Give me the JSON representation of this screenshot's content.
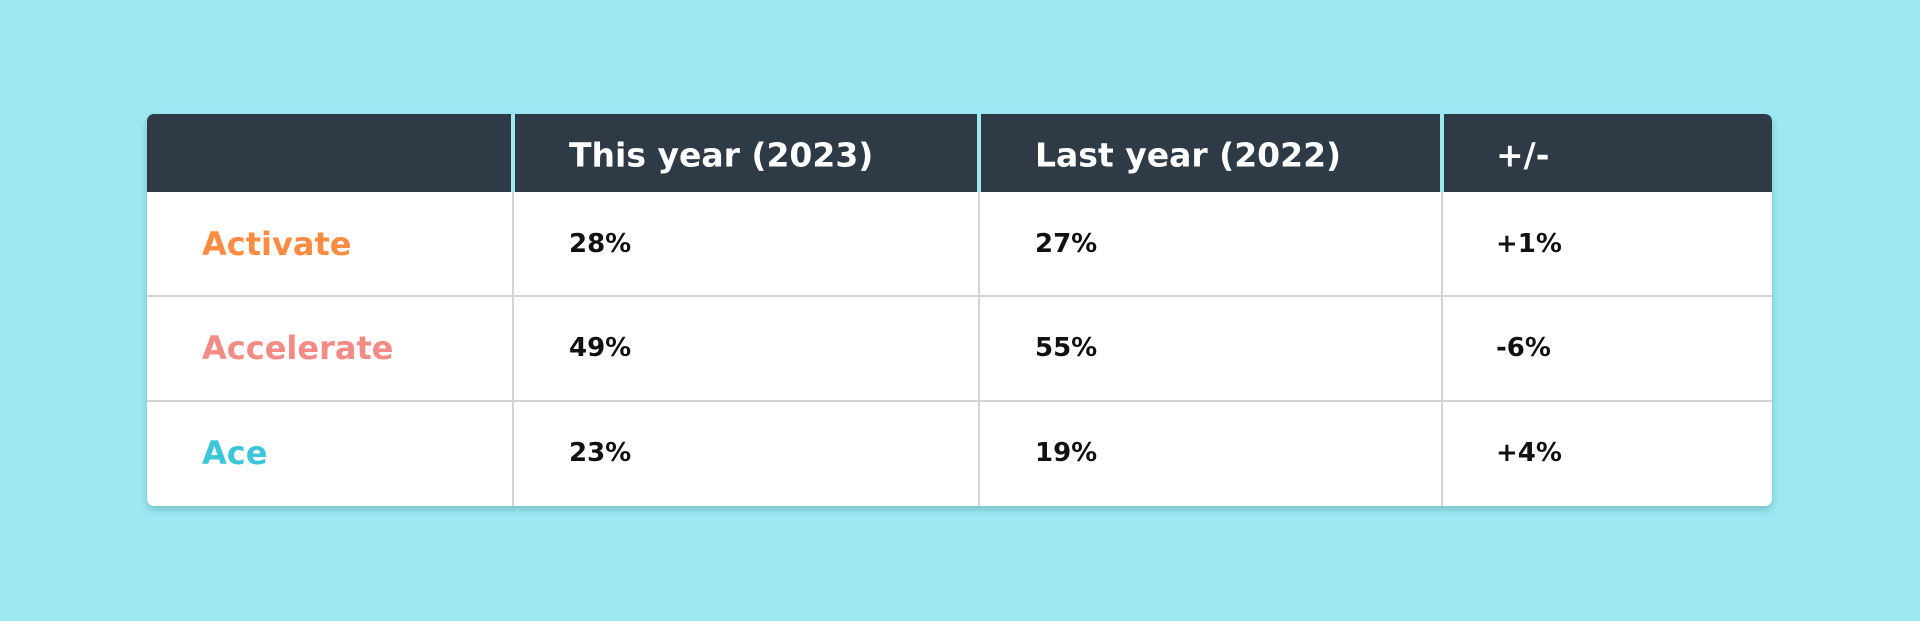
{
  "table": {
    "header": [
      "This year (2023)",
      "Last year (2022)",
      "+/-"
    ],
    "rows": [
      [
        "Activate",
        "28%",
        "27%",
        "+1%"
      ],
      [
        "Accelerate",
        "49%",
        "55%",
        "-6%"
      ],
      [
        "Ace",
        "23%",
        "19%",
        "+4%"
      ]
    ]
  }
}
